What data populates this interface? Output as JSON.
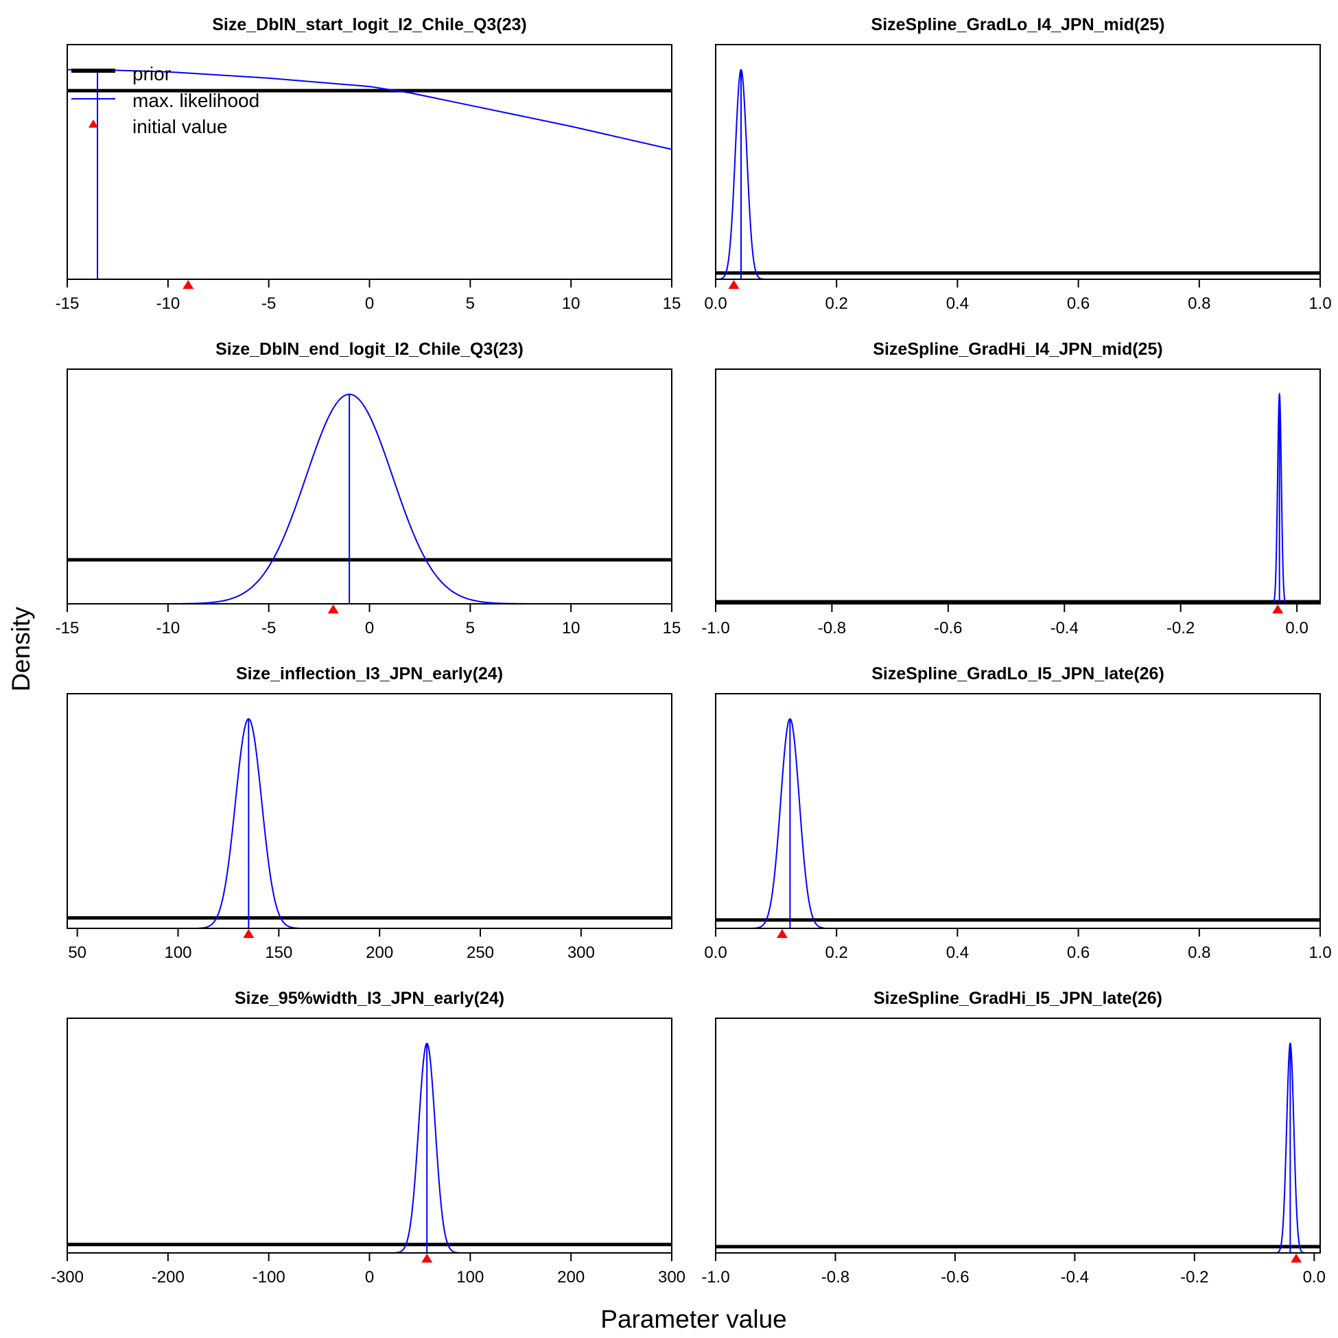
{
  "figure": {
    "ylabel": "Density",
    "xlabel": "Parameter value"
  },
  "legend": {
    "items": [
      {
        "label": "prior",
        "color": "#000000"
      },
      {
        "label": "max. likelihood",
        "color": "#0000ff"
      },
      {
        "label": "initial value",
        "color": "#ff0000"
      }
    ]
  },
  "colors": {
    "prior": "#000000",
    "mle": "#0000ff",
    "initial": "#ff0000"
  },
  "chart_data": [
    {
      "type": "line",
      "title": "Size_DblN_start_logit_I2_Chile_Q3(23)",
      "xlim": [
        -15,
        15
      ],
      "ticks": [
        -15,
        -10,
        -5,
        0,
        5,
        10,
        15
      ],
      "tick_labels": [
        "-15",
        "-10",
        "-5",
        "0",
        "5",
        "10",
        "15"
      ],
      "ymax": 1.12,
      "series": [
        {
          "key": "prior",
          "x": [
            -15,
            15
          ],
          "y": [
            0.9,
            0.9
          ]
        },
        {
          "key": "mle",
          "x": [
            -15,
            -13.5,
            -10,
            -5,
            0,
            2,
            5,
            10,
            15
          ],
          "y": [
            1.0,
            1.0,
            0.99,
            0.96,
            0.92,
            0.89,
            0.83,
            0.73,
            0.62
          ]
        }
      ],
      "mle_value": -13.5,
      "initial_value": -9
    },
    {
      "type": "line",
      "title": "SizeSpline_GradLo_I4_JPN_mid(25)",
      "xlim": [
        0.0,
        1.0
      ],
      "ticks": [
        0,
        0.2,
        0.4,
        0.6,
        0.8,
        1.0
      ],
      "tick_labels": [
        "0.0",
        "0.2",
        "0.4",
        "0.6",
        "0.8",
        "1.0"
      ],
      "ymax": 1.12,
      "series": [
        {
          "key": "prior",
          "x": [
            0.0,
            1.0
          ],
          "y": [
            0.03,
            0.03
          ]
        },
        {
          "key": "mle",
          "normal": {
            "mean": 0.042,
            "sd": 0.0095,
            "range": [
              0.0,
              0.09
            ]
          }
        }
      ],
      "mle_value": 0.042,
      "initial_value": 0.03
    },
    {
      "type": "line",
      "title": "Size_DblN_end_logit_I2_Chile_Q3(23)",
      "xlim": [
        -15,
        15
      ],
      "ticks": [
        -15,
        -10,
        -5,
        0,
        5,
        10,
        15
      ],
      "tick_labels": [
        "-15",
        "-10",
        "-5",
        "0",
        "5",
        "10",
        "15"
      ],
      "ymax": 1.12,
      "series": [
        {
          "key": "prior",
          "x": [
            -15,
            15
          ],
          "y": [
            0.21,
            0.21
          ]
        },
        {
          "key": "mle",
          "normal": {
            "mean": -1,
            "sd": 2.15,
            "range": [
              -10,
              8
            ]
          }
        }
      ],
      "mle_value": -1,
      "initial_value": -1.8
    },
    {
      "type": "line",
      "title": "SizeSpline_GradHi_I4_JPN_mid(25)",
      "xlim": [
        -1.0,
        0.04
      ],
      "ticks": [
        -1.0,
        -0.8,
        -0.6,
        -0.4,
        -0.2,
        0.0
      ],
      "tick_labels": [
        "-1.0",
        "-0.8",
        "-0.6",
        "-0.4",
        "-0.2",
        "0.0"
      ],
      "ymax": 1.12,
      "series": [
        {
          "key": "prior",
          "x": [
            -1.0,
            0.04
          ],
          "y": [
            0.01,
            0.01
          ]
        },
        {
          "key": "mle",
          "normal": {
            "mean": -0.03,
            "sd": 0.0032,
            "range": [
              -0.05,
              -0.01
            ]
          }
        }
      ],
      "mle_value": -0.03,
      "initial_value": -0.033
    },
    {
      "type": "line",
      "title": "Size_inflection_I3_JPN_early(24)",
      "xlim": [
        45,
        345
      ],
      "ticks": [
        50,
        100,
        150,
        200,
        250,
        300
      ],
      "tick_labels": [
        "50",
        "100",
        "150",
        "200",
        "250",
        "300"
      ],
      "ymax": 1.12,
      "series": [
        {
          "key": "prior",
          "x": [
            45,
            345
          ],
          "y": [
            0.05,
            0.05
          ]
        },
        {
          "key": "mle",
          "normal": {
            "mean": 135,
            "sd": 6.5,
            "range": [
              110,
              160
            ]
          }
        }
      ],
      "mle_value": 135,
      "initial_value": 135
    },
    {
      "type": "line",
      "title": "SizeSpline_GradLo_I5_JPN_late(26)",
      "xlim": [
        0.0,
        1.0
      ],
      "ticks": [
        0,
        0.2,
        0.4,
        0.6,
        0.8,
        1.0
      ],
      "tick_labels": [
        "0.0",
        "0.2",
        "0.4",
        "0.6",
        "0.8",
        "1.0"
      ],
      "ymax": 1.12,
      "series": [
        {
          "key": "prior",
          "x": [
            0.0,
            1.0
          ],
          "y": [
            0.04,
            0.04
          ]
        },
        {
          "key": "mle",
          "normal": {
            "mean": 0.123,
            "sd": 0.0155,
            "range": [
              0.06,
              0.18
            ]
          }
        }
      ],
      "mle_value": 0.123,
      "initial_value": 0.11
    },
    {
      "type": "line",
      "title": "Size_95%width_I3_JPN_early(24)",
      "xlim": [
        -300,
        300
      ],
      "ticks": [
        -300,
        -200,
        -100,
        0,
        100,
        200,
        300
      ],
      "tick_labels": [
        "-300",
        "-200",
        "-100",
        "0",
        "100",
        "200",
        "300"
      ],
      "ymax": 1.12,
      "series": [
        {
          "key": "prior",
          "x": [
            -300,
            300
          ],
          "y": [
            0.04,
            0.04
          ]
        },
        {
          "key": "mle",
          "normal": {
            "mean": 57,
            "sd": 8.2,
            "range": [
              25,
              90
            ]
          }
        }
      ],
      "mle_value": 57,
      "initial_value": 57
    },
    {
      "type": "line",
      "title": "SizeSpline_GradHi_I5_JPN_late(26)",
      "xlim": [
        -1.0,
        0.01
      ],
      "ticks": [
        -1.0,
        -0.8,
        -0.6,
        -0.4,
        -0.2,
        0.0
      ],
      "tick_labels": [
        "-1.0",
        "-0.8",
        "-0.6",
        "-0.4",
        "-0.2",
        "0.0"
      ],
      "ymax": 1.12,
      "series": [
        {
          "key": "prior",
          "x": [
            -1.0,
            0.01
          ],
          "y": [
            0.03,
            0.03
          ]
        },
        {
          "key": "mle",
          "normal": {
            "mean": -0.04,
            "sd": 0.006,
            "range": [
              -0.065,
              -0.015
            ]
          }
        }
      ],
      "mle_value": -0.04,
      "initial_value": -0.03
    }
  ]
}
